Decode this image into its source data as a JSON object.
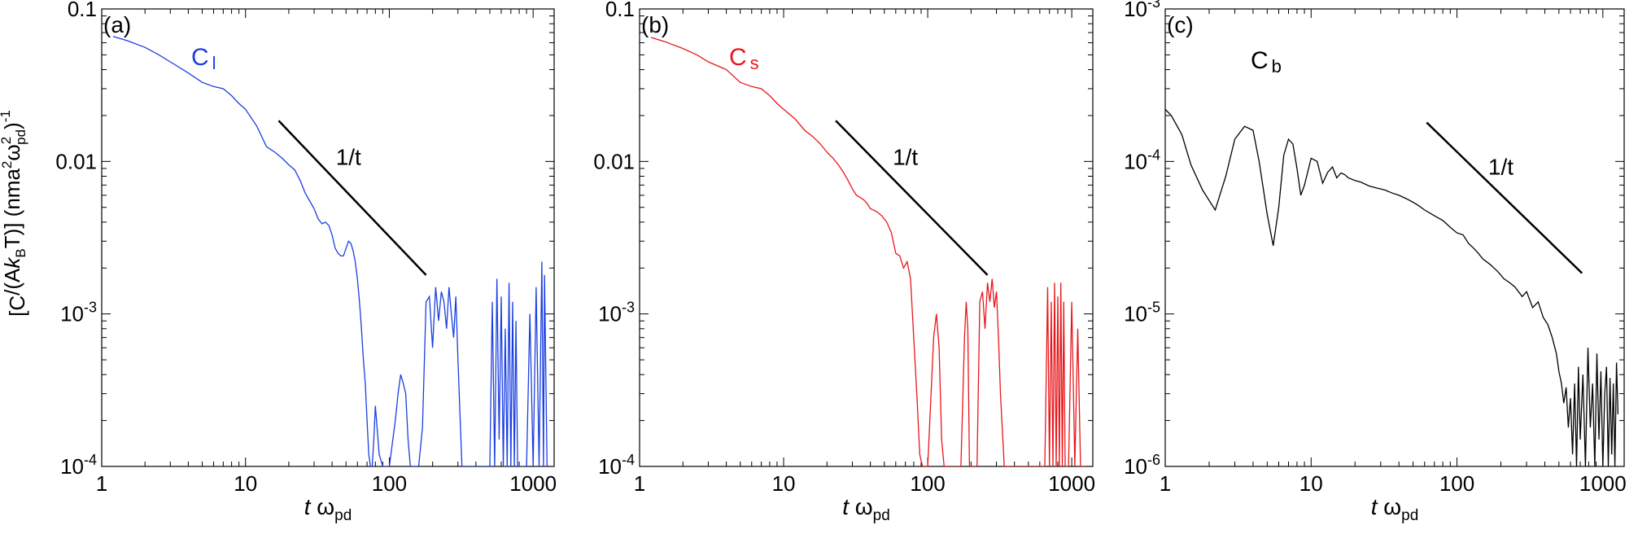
{
  "figure": {
    "ylabel": {
      "open": "[C",
      "mid1": "/(A",
      "k": "k",
      "b": "B",
      "mid2": "T)] (nma",
      "two1": "2",
      "omega": "ω",
      "two2": "2",
      "pd": "pd",
      "close": ")",
      "exp": "-1"
    }
  },
  "colors": {
    "blue": "#1a3fe0",
    "red": "#e8161b",
    "black": "#000000"
  },
  "chart_data": [
    {
      "type": "line",
      "panel_label": "(a)",
      "curve_label": "C",
      "curve_sub": "l",
      "color": "#1a3fe0",
      "xscale": "log",
      "yscale": "log",
      "xlim": [
        1,
        1400
      ],
      "ylim": [
        0.0001,
        0.1
      ],
      "xlabel_t": "t",
      "xlabel_w": "ω",
      "xlabel_sub": "pd",
      "xticks": [
        {
          "value": 1,
          "label": "1"
        },
        {
          "value": 10,
          "label": "10"
        },
        {
          "value": 100,
          "label": "100"
        },
        {
          "value": 1000,
          "label": "1000"
        }
      ],
      "yticks": [
        {
          "value": 0.1,
          "label": "0.1"
        },
        {
          "value": 0.01,
          "label": "0.01"
        },
        {
          "value": 0.001,
          "mant": "10",
          "exp": "-3"
        },
        {
          "value": 0.0001,
          "mant": "10",
          "exp": "-4"
        }
      ],
      "slope_label": "1/t",
      "slope_line": {
        "x": [
          17,
          180
        ],
        "y": [
          0.0185,
          0.0018
        ]
      },
      "slope_label_at": {
        "x": 52,
        "y": 0.0095
      },
      "series": {
        "x": [
          1.2,
          1.5,
          2,
          2.5,
          3,
          4,
          5,
          6,
          7,
          8,
          9,
          10,
          12,
          14,
          16,
          18,
          20,
          22,
          24,
          26,
          28,
          30,
          32,
          34,
          36,
          38,
          40,
          42,
          44,
          46,
          48,
          50,
          52,
          54,
          56,
          58,
          60,
          62,
          64,
          66,
          68,
          70,
          72,
          74,
          76,
          78,
          80,
          85,
          90,
          95,
          100,
          110,
          115,
          120,
          125,
          130,
          135,
          140,
          150,
          160,
          170,
          180,
          190,
          200,
          210,
          220,
          230,
          240,
          250,
          260,
          270,
          280,
          290,
          300,
          320,
          340,
          360,
          380,
          400,
          450,
          500,
          520,
          540,
          560,
          580,
          600,
          620,
          640,
          660,
          680,
          700,
          720,
          740,
          760,
          780,
          800,
          850,
          900,
          950,
          1000,
          1050,
          1100,
          1150,
          1180,
          1200,
          1250
        ],
        "y": [
          0.066,
          0.062,
          0.056,
          0.05,
          0.045,
          0.038,
          0.033,
          0.031,
          0.03,
          0.027,
          0.024,
          0.022,
          0.017,
          0.0125,
          0.0115,
          0.0105,
          0.0095,
          0.0088,
          0.0075,
          0.0062,
          0.0055,
          0.0049,
          0.0042,
          0.0039,
          0.004,
          0.0038,
          0.0033,
          0.0027,
          0.0025,
          0.0024,
          0.0024,
          0.0027,
          0.003,
          0.0029,
          0.0026,
          0.0022,
          0.0017,
          0.0012,
          0.0008,
          0.0005,
          0.00035,
          0.0002,
          0.00012,
          0.0001,
          0.0001,
          0.00015,
          0.00025,
          0.00012,
          0.0001,
          0.0001,
          0.0001,
          0.0002,
          0.0003,
          0.0004,
          0.00035,
          0.0003,
          0.00015,
          0.0001,
          0.0001,
          0.0001,
          0.00018,
          0.0012,
          0.0013,
          0.0006,
          0.0015,
          0.0009,
          0.0014,
          0.0012,
          0.0008,
          0.0015,
          0.001,
          0.0007,
          0.0013,
          0.0005,
          0.0001,
          0.0001,
          0.0001,
          0.0001,
          0.0001,
          0.0001,
          0.0001,
          0.0012,
          0.0001,
          0.0017,
          0.00015,
          0.0013,
          0.0001,
          0.0008,
          0.0001,
          0.0016,
          0.0001,
          0.0012,
          0.0001,
          0.0009,
          0.0001,
          0.0001,
          0.0001,
          0.0001,
          0.001,
          0.0001,
          0.0015,
          0.0001,
          0.0022,
          0.0001,
          0.0018,
          0.0001
        ]
      }
    },
    {
      "type": "line",
      "panel_label": "(b)",
      "curve_label": "C",
      "curve_sub": "s",
      "color": "#e8161b",
      "xscale": "log",
      "yscale": "log",
      "xlim": [
        1,
        1400
      ],
      "ylim": [
        0.0001,
        0.1
      ],
      "xlabel_t": "t",
      "xlabel_w": "ω",
      "xlabel_sub": "pd",
      "xticks": [
        {
          "value": 1,
          "label": "1"
        },
        {
          "value": 10,
          "label": "10"
        },
        {
          "value": 100,
          "label": "100"
        },
        {
          "value": 1000,
          "label": "1000"
        }
      ],
      "yticks": [
        {
          "value": 0.1,
          "label": "0.1"
        },
        {
          "value": 0.01,
          "label": "0.01"
        },
        {
          "value": 0.001,
          "mant": "10",
          "exp": "-3"
        },
        {
          "value": 0.0001,
          "mant": "10",
          "exp": "-4"
        }
      ],
      "slope_label": "1/t",
      "slope_line": {
        "x": [
          23,
          260
        ],
        "y": [
          0.0185,
          0.0018
        ]
      },
      "slope_label_at": {
        "x": 70,
        "y": 0.0095
      },
      "series": {
        "x": [
          1.2,
          1.5,
          2,
          2.5,
          3,
          4,
          5,
          6,
          7,
          8,
          9,
          10,
          12,
          14,
          16,
          18,
          20,
          22,
          24,
          26,
          28,
          30,
          32,
          34,
          36,
          38,
          40,
          44,
          48,
          52,
          56,
          60,
          64,
          68,
          72,
          76,
          80,
          84,
          88,
          92,
          96,
          100,
          110,
          115,
          120,
          125,
          130,
          135,
          140,
          150,
          160,
          170,
          180,
          185,
          190,
          195,
          200,
          210,
          220,
          230,
          240,
          250,
          260,
          270,
          280,
          290,
          300,
          310,
          320,
          340,
          360,
          380,
          400,
          450,
          500,
          600,
          650,
          680,
          700,
          720,
          740,
          760,
          780,
          800,
          820,
          840,
          860,
          880,
          900,
          950,
          1000,
          1050,
          1100,
          1150,
          1200,
          1250
        ],
        "y": [
          0.065,
          0.061,
          0.055,
          0.05,
          0.045,
          0.04,
          0.033,
          0.031,
          0.03,
          0.027,
          0.024,
          0.022,
          0.019,
          0.016,
          0.0145,
          0.013,
          0.0115,
          0.0105,
          0.0095,
          0.0085,
          0.0075,
          0.0066,
          0.006,
          0.0058,
          0.0056,
          0.0053,
          0.0049,
          0.0047,
          0.0044,
          0.004,
          0.0034,
          0.0025,
          0.0024,
          0.002,
          0.0022,
          0.0017,
          0.0007,
          0.0003,
          0.00012,
          0.0001,
          0.0001,
          0.0001,
          0.0007,
          0.001,
          0.0006,
          0.00015,
          0.0001,
          0.0001,
          0.0001,
          0.0001,
          0.0001,
          0.0001,
          0.0007,
          0.0012,
          0.0008,
          0.0001,
          0.0001,
          0.0001,
          0.0001,
          0.0012,
          0.0014,
          0.0008,
          0.0016,
          0.0012,
          0.0017,
          0.0011,
          0.0014,
          0.0007,
          0.0003,
          0.0001,
          0.0001,
          0.0001,
          0.0001,
          0.0001,
          0.0001,
          0.0001,
          0.0001,
          0.0015,
          0.0001,
          0.0012,
          0.0001,
          0.0016,
          0.0001,
          0.0013,
          0.0001,
          0.0016,
          0.0001,
          0.0012,
          0.0001,
          0.0001,
          0.0012,
          0.0001,
          0.0008,
          0.0001,
          0.0001,
          0.0001
        ]
      }
    },
    {
      "type": "line",
      "panel_label": "(c)",
      "curve_label": "C",
      "curve_sub": "b",
      "color": "#000000",
      "xscale": "log",
      "yscale": "log",
      "xlim": [
        1,
        1400
      ],
      "ylim": [
        1e-06,
        0.001
      ],
      "xlabel_t": "t",
      "xlabel_w": "ω",
      "xlabel_sub": "pd",
      "xticks": [
        {
          "value": 1,
          "label": "1"
        },
        {
          "value": 10,
          "label": "10"
        },
        {
          "value": 100,
          "label": "100"
        },
        {
          "value": 1000,
          "label": "1000"
        }
      ],
      "yticks": [
        {
          "value": 0.001,
          "mant": "10",
          "exp": "-3"
        },
        {
          "value": 0.0001,
          "mant": "10",
          "exp": "-4"
        },
        {
          "value": 1e-05,
          "mant": "10",
          "exp": "-5"
        },
        {
          "value": 1e-06,
          "mant": "10",
          "exp": "-6"
        }
      ],
      "slope_label": "1/t",
      "slope_line": {
        "x": [
          62,
          720
        ],
        "y": [
          0.00018,
          1.85e-05
        ]
      },
      "slope_label_at": {
        "x": 200,
        "y": 8.2e-05
      },
      "series": {
        "x": [
          1,
          1.1,
          1.3,
          1.5,
          1.8,
          2.2,
          2.6,
          3,
          3.5,
          4,
          4.4,
          5,
          5.5,
          6,
          6.5,
          7,
          7.5,
          8,
          8.5,
          9,
          10,
          11,
          12,
          13,
          14,
          15,
          16,
          17,
          18,
          20,
          22,
          25,
          28,
          32,
          36,
          40,
          45,
          50,
          55,
          60,
          70,
          80,
          90,
          100,
          110,
          120,
          130,
          140,
          150,
          170,
          190,
          210,
          230,
          250,
          280,
          300,
          330,
          360,
          390,
          420,
          450,
          480,
          500,
          520,
          540,
          560,
          580,
          600,
          620,
          640,
          660,
          680,
          700,
          730,
          760,
          790,
          820,
          850,
          880,
          910,
          940,
          970,
          1000,
          1030,
          1060,
          1090,
          1120,
          1150,
          1180,
          1210,
          1240,
          1270
        ],
        "y": [
          0.00022,
          0.0002,
          0.00015,
          9.5e-05,
          6.5e-05,
          4.8e-05,
          8e-05,
          0.00014,
          0.00017,
          0.00016,
          0.0001,
          4.5e-05,
          2.8e-05,
          5e-05,
          0.00011,
          0.00014,
          0.00013,
          9e-05,
          6e-05,
          7e-05,
          0.000105,
          0.0001,
          7.2e-05,
          8.5e-05,
          9.2e-05,
          7.8e-05,
          8.4e-05,
          8.2e-05,
          7.8e-05,
          7.5e-05,
          7.3e-05,
          6.9e-05,
          6.7e-05,
          6.5e-05,
          6.2e-05,
          6e-05,
          5.7e-05,
          5.4e-05,
          5.1e-05,
          4.8e-05,
          4.4e-05,
          4.1e-05,
          3.7e-05,
          3.4e-05,
          3.3e-05,
          2.9e-05,
          2.7e-05,
          2.5e-05,
          2.3e-05,
          2.1e-05,
          1.9e-05,
          1.7e-05,
          1.6e-05,
          1.5e-05,
          1.3e-05,
          1.4e-05,
          1.1e-05,
          1.2e-05,
          9.5e-06,
          8.5e-06,
          7e-06,
          5.5e-06,
          4.2e-06,
          3.5e-06,
          2.6e-06,
          3.3e-06,
          1.8e-06,
          2.8e-06,
          1.2e-06,
          3.5e-06,
          1e-06,
          4.5e-06,
          1.5e-06,
          4e-06,
          1e-06,
          6e-06,
          1.8e-06,
          3.5e-06,
          1e-06,
          5.5e-06,
          1.5e-06,
          4.2e-06,
          1e-06,
          3e-06,
          4.5e-06,
          1e-06,
          3.8e-06,
          1.2e-06,
          3.5e-06,
          1e-06,
          4.8e-06,
          2.2e-06
        ]
      }
    }
  ]
}
